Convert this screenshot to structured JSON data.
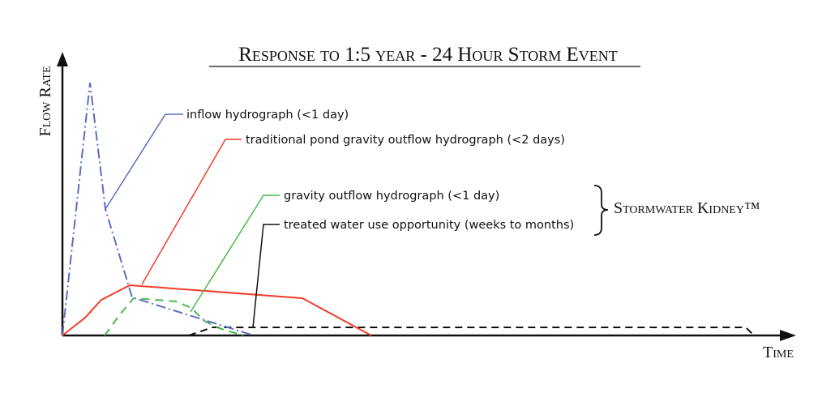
{
  "title": "Response to 1:5 year - 24 Hour Storm Event",
  "axes": {
    "y_label": "Flow Rate",
    "x_label": "Time"
  },
  "labels": {
    "inflow": "inflow hydrograph (<1 day)",
    "traditional": "traditional pond gravity outflow hydrograph (<2 days)",
    "gravity": "gravity outflow hydrograph (<1 day)",
    "treated": "treated water use opportunity (weeks to months)"
  },
  "group_label": "Stormwater Kidney™",
  "colors": {
    "inflow": "#5a6fc0",
    "traditional": "#f03c2a",
    "gravity": "#4cb84c",
    "treated": "#111111"
  }
}
